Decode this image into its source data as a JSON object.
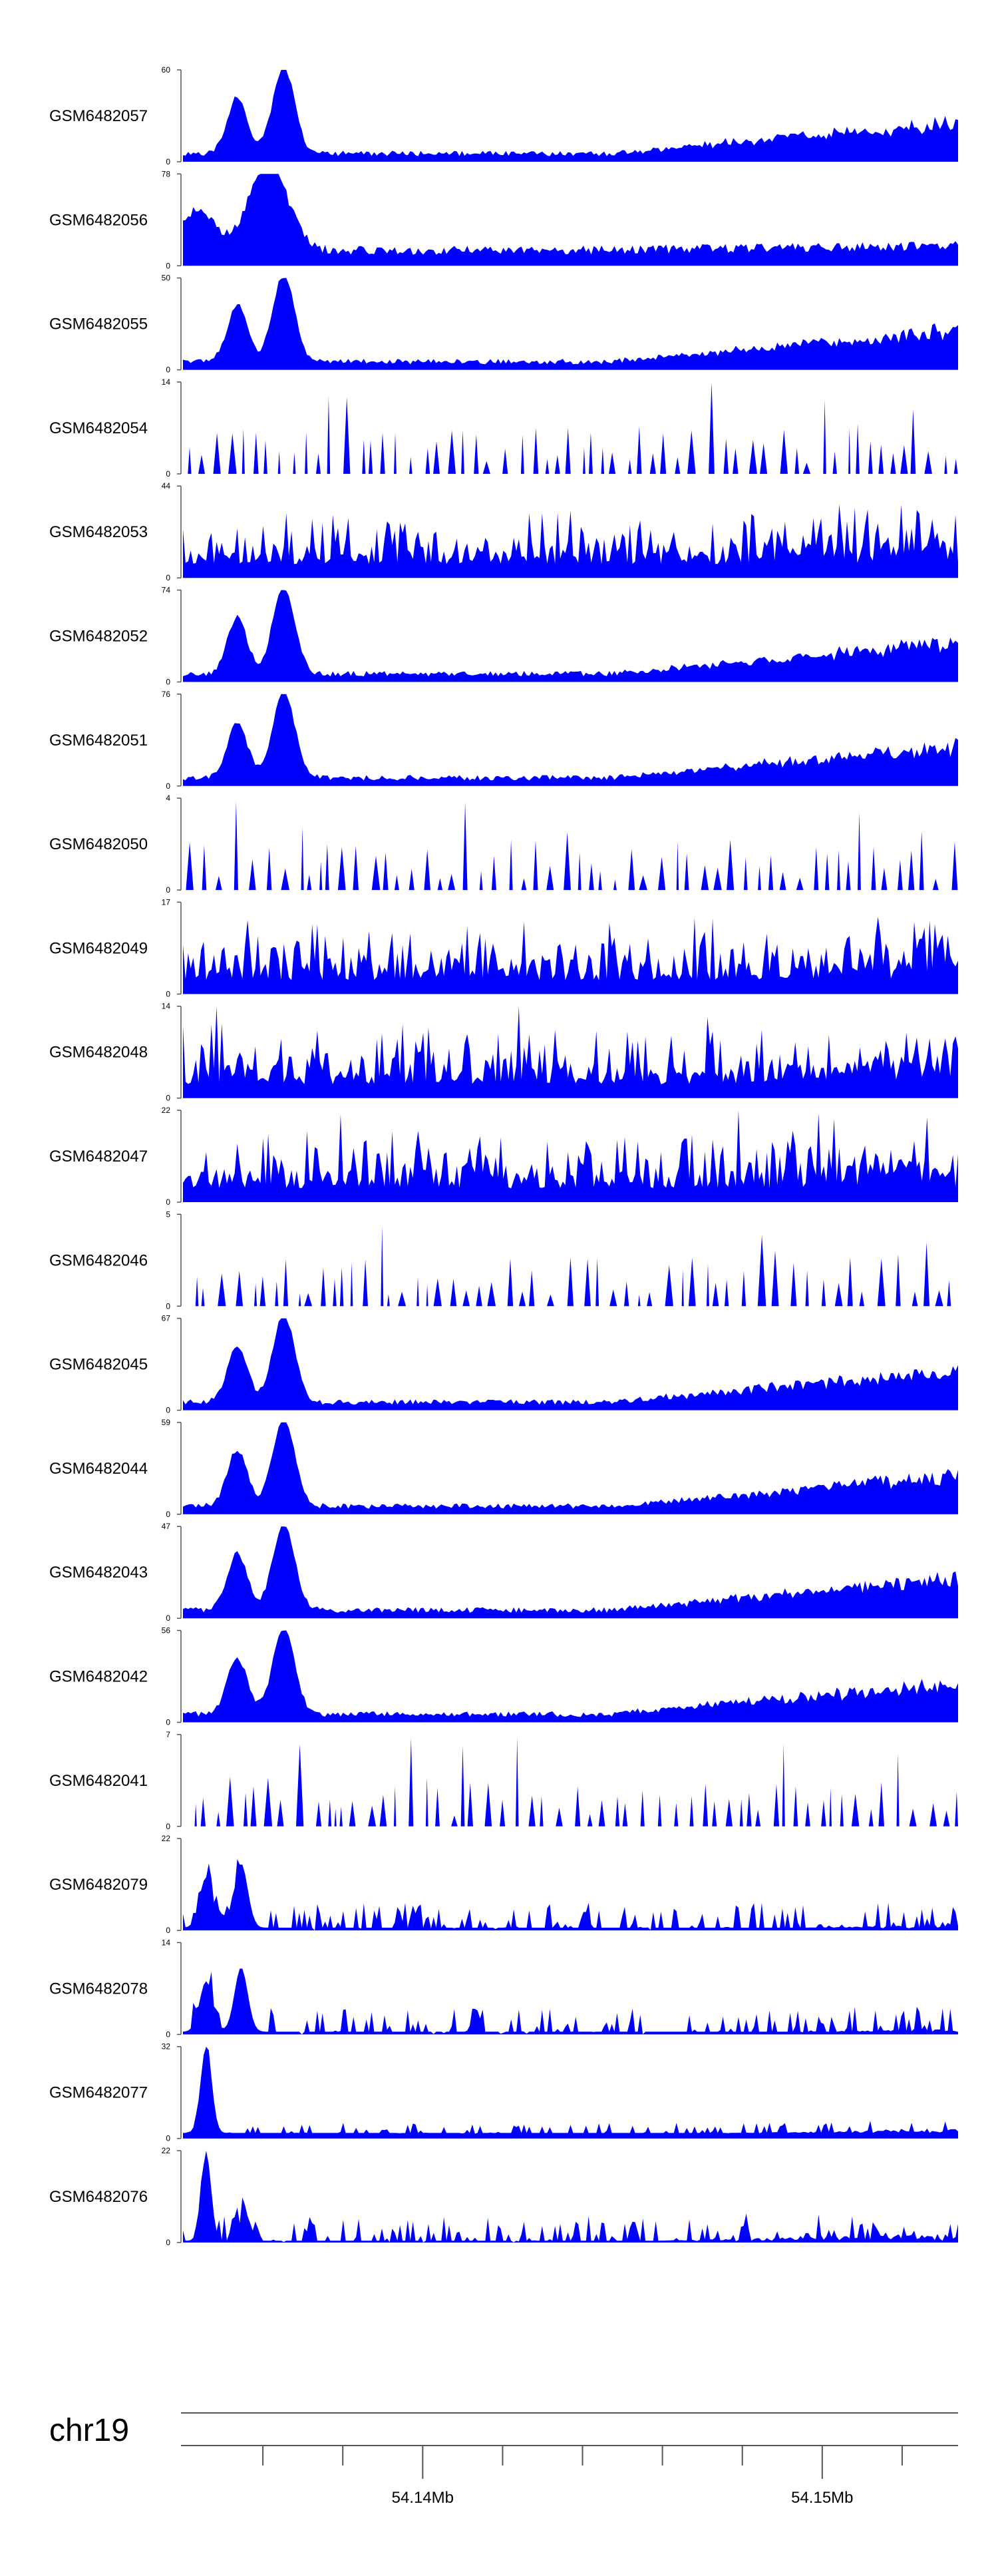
{
  "chart_data": {
    "type": "area",
    "title": "",
    "color": "#0000ff",
    "chromosome": "chr19",
    "x_unit": "Mb",
    "xlim": [
      54.134,
      54.1534
    ],
    "x_ticks": [
      54.14,
      54.15
    ],
    "x_tick_labels": [
      "54.14Mb",
      "54.15Mb"
    ],
    "minor_ticks": [
      54.136,
      54.138,
      54.142,
      54.144,
      54.146,
      54.148,
      54.152
    ],
    "tracks": [
      {
        "label": "GSM6482057",
        "ylim": [
          0,
          60
        ],
        "y_tick_labels": [
          "60",
          "0"
        ]
      },
      {
        "label": "GSM6482056",
        "ylim": [
          0,
          78
        ],
        "y_tick_labels": [
          "78",
          "0"
        ]
      },
      {
        "label": "GSM6482055",
        "ylim": [
          0,
          50
        ],
        "y_tick_labels": [
          "50",
          "0"
        ]
      },
      {
        "label": "GSM6482054",
        "ylim": [
          0,
          14
        ],
        "y_tick_labels": [
          "14",
          "0"
        ]
      },
      {
        "label": "GSM6482053",
        "ylim": [
          0,
          44
        ],
        "y_tick_labels": [
          "44",
          "0"
        ]
      },
      {
        "label": "GSM6482052",
        "ylim": [
          0,
          74
        ],
        "y_tick_labels": [
          "74",
          "0"
        ]
      },
      {
        "label": "GSM6482051",
        "ylim": [
          0,
          76
        ],
        "y_tick_labels": [
          "76",
          "0"
        ]
      },
      {
        "label": "GSM6482050",
        "ylim": [
          0,
          4
        ],
        "y_tick_labels": [
          "4",
          "0"
        ]
      },
      {
        "label": "GSM6482049",
        "ylim": [
          0,
          17
        ],
        "y_tick_labels": [
          "17",
          "0"
        ]
      },
      {
        "label": "GSM6482048",
        "ylim": [
          0,
          14
        ],
        "y_tick_labels": [
          "14",
          "0"
        ]
      },
      {
        "label": "GSM6482047",
        "ylim": [
          0,
          22
        ],
        "y_tick_labels": [
          "22",
          "0"
        ]
      },
      {
        "label": "GSM6482046",
        "ylim": [
          0,
          5
        ],
        "y_tick_labels": [
          "5",
          "0"
        ]
      },
      {
        "label": "GSM6482045",
        "ylim": [
          0,
          67
        ],
        "y_tick_labels": [
          "67",
          "0"
        ]
      },
      {
        "label": "GSM6482044",
        "ylim": [
          0,
          59
        ],
        "y_tick_labels": [
          "59",
          "0"
        ]
      },
      {
        "label": "GSM6482043",
        "ylim": [
          0,
          47
        ],
        "y_tick_labels": [
          "47",
          "0"
        ]
      },
      {
        "label": "GSM6482042",
        "ylim": [
          0,
          56
        ],
        "y_tick_labels": [
          "56",
          "0"
        ]
      },
      {
        "label": "GSM6482041",
        "ylim": [
          0,
          7
        ],
        "y_tick_labels": [
          "7",
          "0"
        ]
      },
      {
        "label": "GSM6482079",
        "ylim": [
          0,
          22
        ],
        "y_tick_labels": [
          "22",
          "0"
        ]
      },
      {
        "label": "GSM6482078",
        "ylim": [
          0,
          14
        ],
        "y_tick_labels": [
          "14",
          "0"
        ]
      },
      {
        "label": "GSM6482077",
        "ylim": [
          0,
          32
        ],
        "y_tick_labels": [
          "32",
          "0"
        ]
      },
      {
        "label": "GSM6482076",
        "ylim": [
          0,
          22
        ],
        "y_tick_labels": [
          "22",
          "0"
        ]
      }
    ]
  }
}
